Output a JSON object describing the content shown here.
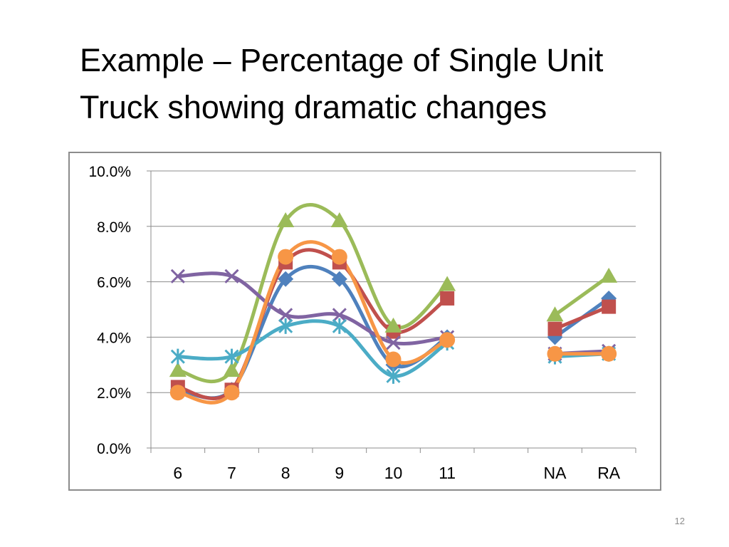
{
  "slide": {
    "title_line1": "Example – Percentage of Single Unit",
    "title_line2": "Truck showing dramatic changes",
    "page_number": "12"
  },
  "chart_data": {
    "type": "line",
    "title": "",
    "xlabel": "",
    "ylabel": "",
    "categories": [
      "6",
      "7",
      "8",
      "9",
      "10",
      "11",
      "",
      "NA",
      "RA"
    ],
    "y_ticks": [
      "0.0%",
      "2.0%",
      "4.0%",
      "6.0%",
      "8.0%",
      "10.0%"
    ],
    "ylim": [
      0,
      10
    ],
    "grid": true,
    "legend": "none",
    "smoothed": true,
    "series": [
      {
        "color": "#4F81BD",
        "marker": "diamond",
        "values": [
          2.1,
          2.1,
          6.1,
          6.1,
          3.0,
          4.0,
          null,
          4.0,
          5.4
        ]
      },
      {
        "color": "#C0504D",
        "marker": "square",
        "values": [
          2.2,
          2.1,
          6.7,
          6.7,
          4.2,
          5.4,
          null,
          4.3,
          5.1
        ]
      },
      {
        "color": "#9BBB59",
        "marker": "triangle",
        "values": [
          2.8,
          2.8,
          8.2,
          8.2,
          4.4,
          5.9,
          null,
          4.8,
          6.2
        ]
      },
      {
        "color": "#8064A2",
        "marker": "x",
        "values": [
          6.2,
          6.2,
          4.8,
          4.8,
          3.8,
          4.0,
          null,
          3.4,
          3.5
        ]
      },
      {
        "color": "#4BACC6",
        "marker": "star",
        "values": [
          3.3,
          3.3,
          4.4,
          4.4,
          2.6,
          3.8,
          null,
          3.3,
          3.4
        ]
      },
      {
        "color": "#F79646",
        "marker": "circle",
        "values": [
          2.0,
          2.0,
          6.9,
          6.9,
          3.2,
          3.9,
          null,
          3.4,
          3.4
        ]
      }
    ]
  }
}
